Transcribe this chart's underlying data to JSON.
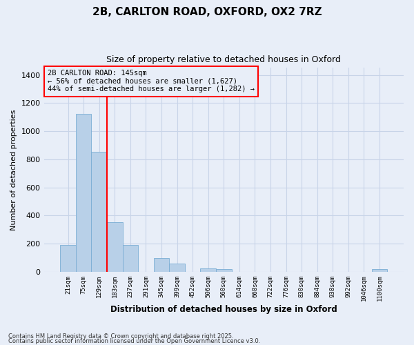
{
  "title1": "2B, CARLTON ROAD, OXFORD, OX2 7RZ",
  "title2": "Size of property relative to detached houses in Oxford",
  "xlabel": "Distribution of detached houses by size in Oxford",
  "ylabel": "Number of detached properties",
  "categories": [
    "21sqm",
    "75sqm",
    "129sqm",
    "183sqm",
    "237sqm",
    "291sqm",
    "345sqm",
    "399sqm",
    "452sqm",
    "506sqm",
    "560sqm",
    "614sqm",
    "668sqm",
    "722sqm",
    "776sqm",
    "830sqm",
    "884sqm",
    "938sqm",
    "992sqm",
    "1046sqm",
    "1100sqm"
  ],
  "values": [
    193,
    1125,
    855,
    355,
    193,
    0,
    98,
    60,
    0,
    25,
    20,
    0,
    0,
    0,
    0,
    0,
    0,
    0,
    0,
    0,
    20
  ],
  "bar_color": "#b8d0e8",
  "bar_edge_color": "#7aadd4",
  "bg_color": "#e8eef8",
  "grid_color": "#c8d4e8",
  "vline_x": 2.5,
  "vline_color": "red",
  "annotation_text": "2B CARLTON ROAD: 145sqm\n← 56% of detached houses are smaller (1,627)\n44% of semi-detached houses are larger (1,282) →",
  "annotation_box_color": "red",
  "annotation_bg": "#e8eef8",
  "ylim": [
    0,
    1450
  ],
  "yticks": [
    0,
    200,
    400,
    600,
    800,
    1000,
    1200,
    1400
  ],
  "footer1": "Contains HM Land Registry data © Crown copyright and database right 2025.",
  "footer2": "Contains public sector information licensed under the Open Government Licence v3.0."
}
